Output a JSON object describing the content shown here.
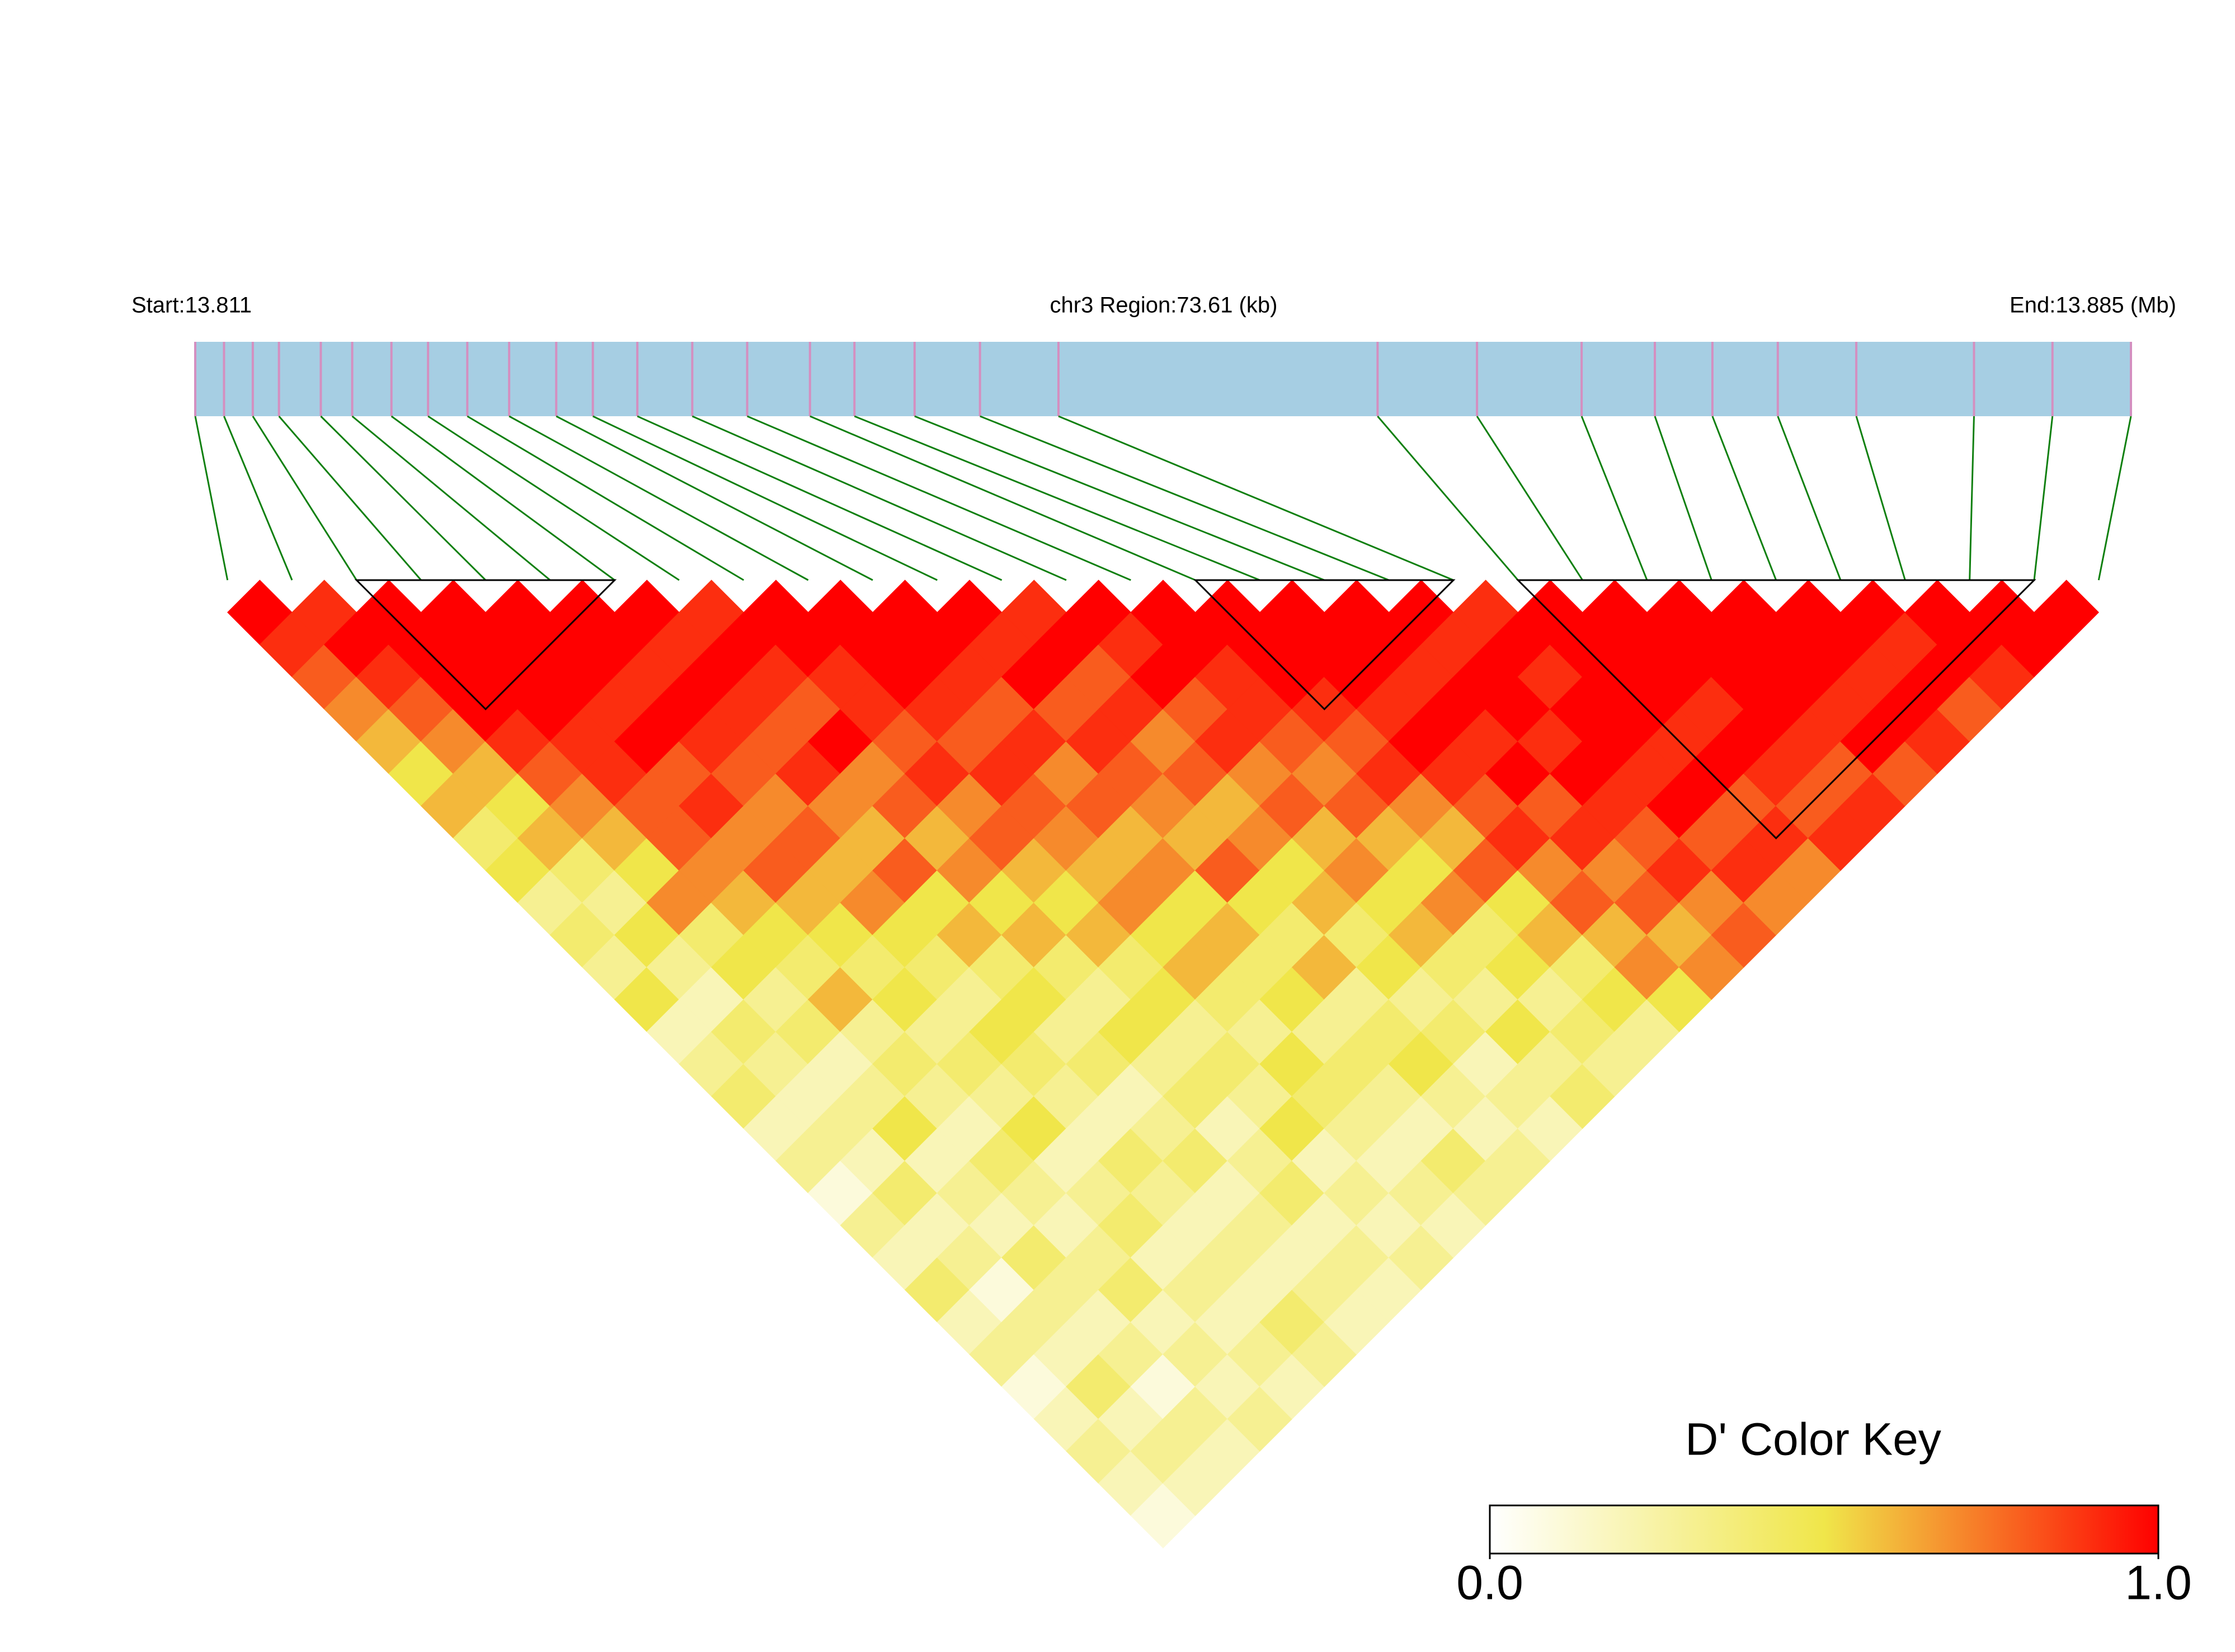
{
  "chart_data": {
    "type": "ld_heatmap",
    "start_text": "Start:13.811",
    "region_text": "chr3 Region:73.61 (kb)",
    "end_text": "End:13.885 (Mb)",
    "xlim": [
      13.811,
      13.885
    ],
    "positions": [
      13.811,
      13.8121,
      13.8132,
      13.8142,
      13.8158,
      13.817,
      13.8185,
      13.8199,
      13.8214,
      13.823,
      13.8248,
      13.8262,
      13.8279,
      13.83,
      13.8321,
      13.8345,
      13.8362,
      13.8385,
      13.841,
      13.844,
      13.8562,
      13.86,
      13.864,
      13.8668,
      13.869,
      13.8715,
      13.8745,
      13.879,
      13.882,
      13.885
    ],
    "dprime": [
      [
        1,
        0.9,
        0.8,
        0.7,
        0.6,
        0.5,
        0.6,
        0.4,
        0.5,
        0.3,
        0.4,
        0.3,
        0.5,
        0.2,
        0.3,
        0.4,
        0.2,
        0.3,
        0.1,
        0.3,
        0.2,
        0.4,
        0.2,
        0.3,
        0.1,
        0.2,
        0.3,
        0.2,
        0.1
      ],
      [
        0.9,
        1,
        0.9,
        0.8,
        0.7,
        0.6,
        0.5,
        0.6,
        0.4,
        0.3,
        0.5,
        0.3,
        0.2,
        0.4,
        0.3,
        0.2,
        0.3,
        0.2,
        0.4,
        0.2,
        0.3,
        0.1,
        0.3,
        0.2,
        0.4,
        0.2,
        0.3,
        0.2
      ],
      [
        1,
        1,
        1,
        1,
        0.9,
        0.8,
        0.7,
        0.6,
        0.5,
        0.7,
        0.4,
        0.5,
        0.3,
        0.4,
        0.2,
        0.3,
        0.5,
        0.2,
        0.3,
        0.2,
        0.4,
        0.3,
        0.2,
        0.3,
        0.1,
        0.3,
        0.2
      ],
      [
        1,
        1,
        1,
        1,
        0.9,
        0.9,
        0.8,
        0.8,
        0.7,
        0.6,
        0.5,
        0.4,
        0.6,
        0.3,
        0.4,
        0.3,
        0.2,
        0.4,
        0.3,
        0.2,
        0.3,
        0.4,
        0.2,
        0.3,
        0.2,
        0.3
      ],
      [
        1,
        1,
        1,
        0.9,
        1,
        0.8,
        0.9,
        0.7,
        0.8,
        0.6,
        0.5,
        0.4,
        0.5,
        0.3,
        0.4,
        0.3,
        0.5,
        0.2,
        0.3,
        0.4,
        0.2,
        0.3,
        0.2,
        0.3,
        0.2
      ],
      [
        1,
        1,
        0.9,
        1,
        0.9,
        0.8,
        0.7,
        0.8,
        0.6,
        0.7,
        0.5,
        0.4,
        0.3,
        0.5,
        0.4,
        0.3,
        0.2,
        0.4,
        0.3,
        0.2,
        0.3,
        0.2,
        0.4,
        0.3
      ],
      [
        1,
        0.9,
        1,
        0.9,
        0.8,
        0.9,
        0.7,
        0.6,
        0.8,
        0.5,
        0.6,
        0.4,
        0.5,
        0.3,
        0.4,
        0.2,
        0.3,
        0.4,
        0.2,
        0.3,
        0.2,
        0.3,
        0.2
      ],
      [
        0.9,
        1,
        0.9,
        0.8,
        1,
        0.7,
        0.8,
        0.6,
        0.7,
        0.5,
        0.6,
        0.4,
        0.3,
        0.5,
        0.3,
        0.4,
        0.2,
        0.3,
        0.4,
        0.2,
        0.3,
        0.2
      ],
      [
        1,
        1,
        0.9,
        0.9,
        0.8,
        0.9,
        0.7,
        0.8,
        0.6,
        0.5,
        0.6,
        0.4,
        0.5,
        0.3,
        0.4,
        0.3,
        0.5,
        0.2,
        0.3,
        0.2,
        0.3
      ],
      [
        1,
        1,
        1,
        0.9,
        0.8,
        0.9,
        0.8,
        0.7,
        0.6,
        0.7,
        0.5,
        0.6,
        0.4,
        0.3,
        0.5,
        0.4,
        0.3,
        0.2,
        0.3,
        0.2
      ],
      [
        1,
        1,
        0.9,
        0.8,
        0.9,
        0.7,
        0.8,
        0.6,
        0.7,
        0.5,
        0.6,
        0.4,
        0.5,
        0.3,
        0.4,
        0.3,
        0.2,
        0.4,
        0.3
      ],
      [
        1,
        0.9,
        1,
        0.8,
        0.9,
        0.8,
        0.7,
        0.6,
        0.8,
        0.5,
        0.4,
        0.6,
        0.3,
        0.4,
        0.5,
        0.3,
        0.2,
        0.3
      ],
      [
        0.9,
        1,
        0.8,
        0.9,
        0.7,
        0.8,
        0.6,
        0.7,
        0.5,
        0.6,
        0.4,
        0.5,
        0.3,
        0.4,
        0.2,
        0.3,
        0.2
      ],
      [
        1,
        0.9,
        1,
        0.8,
        0.9,
        0.7,
        0.8,
        0.6,
        0.7,
        0.5,
        0.6,
        0.4,
        0.3,
        0.5,
        0.3,
        0.4
      ],
      [
        1,
        1,
        0.9,
        0.9,
        0.8,
        0.7,
        0.8,
        0.6,
        0.5,
        0.7,
        0.4,
        0.5,
        0.3,
        0.4,
        0.3
      ],
      [
        1,
        1,
        1,
        0.9,
        0.8,
        0.9,
        0.7,
        0.6,
        0.8,
        0.5,
        0.6,
        0.4,
        0.5,
        0.3
      ],
      [
        1,
        1,
        1,
        0.9,
        1,
        0.9,
        0.8,
        0.9,
        0.7,
        0.8,
        0.6,
        0.7,
        0.5
      ],
      [
        1,
        1,
        0.9,
        1,
        0.9,
        1,
        0.8,
        0.9,
        0.7,
        0.8,
        0.6,
        0.7
      ],
      [
        1,
        0.9,
        1,
        1,
        0.9,
        1,
        0.9,
        0.8,
        0.9,
        0.7,
        0.8
      ],
      [
        0.9,
        1,
        0.9,
        1,
        1,
        0.9,
        1,
        0.8,
        0.9,
        0.7
      ],
      [
        1,
        1,
        1,
        1,
        0.9,
        1,
        0.8,
        0.9,
        0.7
      ],
      [
        1,
        1,
        1,
        0.9,
        1,
        0.9,
        0.8,
        0.9
      ],
      [
        1,
        1,
        1,
        1,
        0.9,
        0.8,
        0.9
      ],
      [
        1,
        1,
        1,
        0.9,
        1,
        0.8
      ],
      [
        1,
        1,
        0.9,
        1,
        0.9
      ],
      [
        1,
        0.9,
        1,
        0.8
      ],
      [
        1,
        1,
        0.9
      ],
      [
        1,
        1
      ],
      [
        1
      ]
    ],
    "blocks": [
      [
        2,
        6
      ],
      [
        15,
        19
      ],
      [
        20,
        28
      ]
    ],
    "colors": [
      "#ffffff",
      "#f0e64a",
      "#ff0000"
    ],
    "color_key_title": "D' Color Key",
    "color_range": [
      0,
      1
    ],
    "color_ticks": [
      {
        "value": 0,
        "label": "0.0"
      },
      {
        "value": 1,
        "label": "1.0"
      }
    ]
  }
}
